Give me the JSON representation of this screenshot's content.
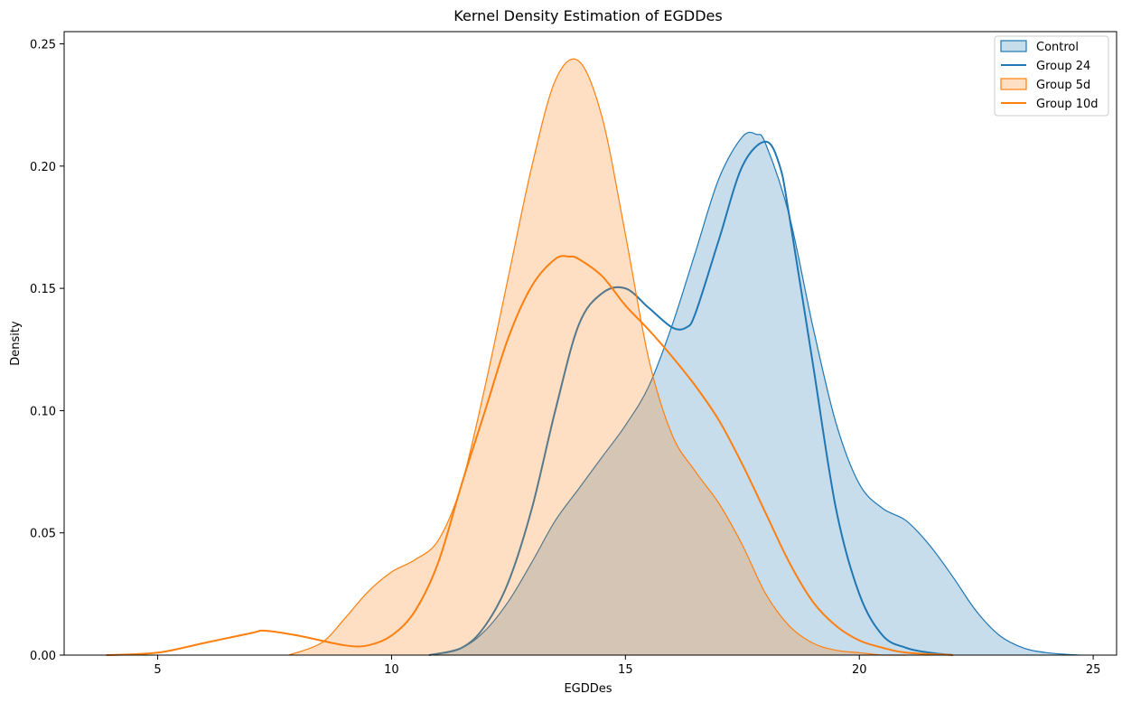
{
  "chart_data": {
    "type": "area",
    "title": "Kernel Density Estimation of EGDDes",
    "xlabel": "EGDDes",
    "ylabel": "Density",
    "xlim": [
      3.0,
      25.5
    ],
    "ylim": [
      0,
      0.255
    ],
    "xticks": [
      5,
      10,
      15,
      20,
      25
    ],
    "xtick_labels": [
      "5",
      "10",
      "15",
      "20",
      "25"
    ],
    "yticks": [
      0.0,
      0.05,
      0.1,
      0.15,
      0.2,
      0.25
    ],
    "ytick_labels": [
      "0.00",
      "0.05",
      "0.10",
      "0.15",
      "0.20",
      "0.25"
    ],
    "grid": false,
    "legend_position": "top-right",
    "series": [
      {
        "name": "Control",
        "style": "filled",
        "color": "#1f77b4",
        "x": [
          10.8,
          11.5,
          12.0,
          12.5,
          13.0,
          13.5,
          14.0,
          14.5,
          15.0,
          15.5,
          16.0,
          16.5,
          17.0,
          17.5,
          17.8,
          18.0,
          18.5,
          19.0,
          19.5,
          20.0,
          20.5,
          21.0,
          21.5,
          22.0,
          22.5,
          23.0,
          23.5,
          24.0,
          24.7
        ],
        "y": [
          0.0,
          0.003,
          0.01,
          0.022,
          0.038,
          0.055,
          0.068,
          0.081,
          0.094,
          0.11,
          0.135,
          0.165,
          0.195,
          0.212,
          0.213,
          0.209,
          0.18,
          0.135,
          0.095,
          0.07,
          0.06,
          0.055,
          0.045,
          0.032,
          0.018,
          0.008,
          0.003,
          0.001,
          0.0
        ]
      },
      {
        "name": "Group 24",
        "style": "line",
        "color": "#1f77b4",
        "x": [
          10.8,
          11.5,
          12.0,
          12.5,
          13.0,
          13.5,
          14.0,
          14.5,
          15.0,
          15.5,
          16.0,
          16.3,
          16.5,
          17.0,
          17.5,
          18.0,
          18.3,
          18.5,
          19.0,
          19.5,
          20.0,
          20.5,
          21.0,
          21.5,
          22.0
        ],
        "y": [
          0.0,
          0.003,
          0.012,
          0.03,
          0.06,
          0.1,
          0.135,
          0.148,
          0.15,
          0.142,
          0.134,
          0.134,
          0.14,
          0.17,
          0.2,
          0.21,
          0.2,
          0.18,
          0.12,
          0.06,
          0.025,
          0.008,
          0.003,
          0.001,
          0.0
        ]
      },
      {
        "name": "Group 5d",
        "style": "filled",
        "color": "#ff7f0e",
        "x": [
          7.8,
          8.5,
          9.0,
          9.5,
          10.0,
          10.5,
          11.0,
          11.5,
          12.0,
          12.5,
          13.0,
          13.5,
          14.0,
          14.5,
          15.0,
          15.5,
          16.0,
          16.5,
          17.0,
          17.5,
          18.0,
          18.5,
          19.0,
          19.5,
          20.0,
          20.5,
          21.0
        ],
        "y": [
          0.0,
          0.005,
          0.015,
          0.026,
          0.034,
          0.039,
          0.047,
          0.07,
          0.11,
          0.155,
          0.2,
          0.235,
          0.243,
          0.22,
          0.172,
          0.121,
          0.09,
          0.075,
          0.062,
          0.045,
          0.025,
          0.012,
          0.005,
          0.002,
          0.001,
          0.0,
          0.0
        ]
      },
      {
        "name": "Group 10d",
        "style": "line",
        "color": "#ff7f0e",
        "x": [
          3.9,
          5.0,
          6.0,
          7.0,
          7.3,
          8.0,
          9.0,
          9.5,
          10.0,
          10.5,
          11.0,
          11.5,
          12.0,
          12.5,
          13.0,
          13.5,
          13.8,
          14.0,
          14.5,
          15.0,
          15.5,
          16.0,
          16.5,
          17.0,
          17.5,
          18.0,
          18.5,
          19.0,
          19.5,
          20.0,
          20.5,
          21.0,
          22.0
        ],
        "y": [
          0.0,
          0.001,
          0.005,
          0.009,
          0.01,
          0.008,
          0.004,
          0.004,
          0.008,
          0.018,
          0.038,
          0.07,
          0.1,
          0.13,
          0.151,
          0.162,
          0.163,
          0.162,
          0.155,
          0.143,
          0.133,
          0.122,
          0.11,
          0.096,
          0.078,
          0.058,
          0.038,
          0.022,
          0.012,
          0.006,
          0.003,
          0.001,
          0.0
        ]
      }
    ]
  }
}
